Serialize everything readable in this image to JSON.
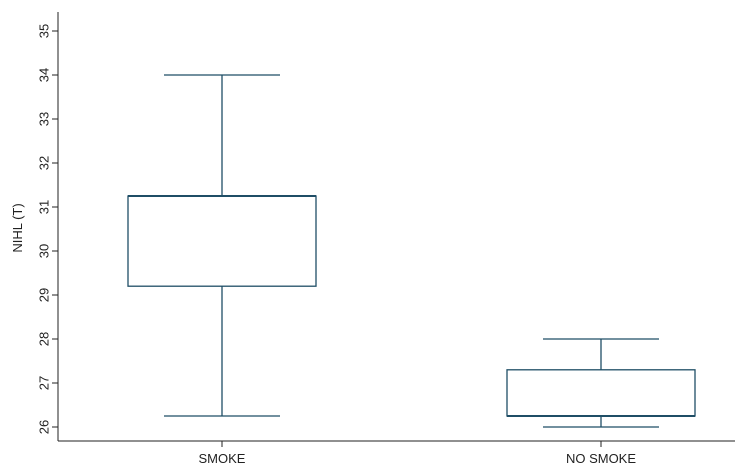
{
  "chart_data": {
    "type": "box",
    "title": "",
    "xlabel": "",
    "ylabel": "NIHL (T)",
    "ylim": [
      25.9,
      35.4
    ],
    "yticks": [
      26,
      27,
      28,
      29,
      30,
      31,
      32,
      33,
      34,
      35
    ],
    "ytick_labels": [
      "26",
      "27",
      "28",
      "29",
      "30",
      "31",
      "32",
      "33",
      "34",
      "35"
    ],
    "categories": [
      "SMOKE",
      "NO SMOKE"
    ],
    "boxes": [
      {
        "category": "SMOKE",
        "min": 26.25,
        "q1": 29.2,
        "median": 31.25,
        "q3": 31.25,
        "max": 34.0
      },
      {
        "category": "NO SMOKE",
        "min": 26.0,
        "q1": 26.25,
        "median": 26.25,
        "q3": 27.3,
        "max": 28.0
      }
    ],
    "grid": false,
    "legend": "none",
    "colors": {
      "box": "#1f4e66",
      "axis": "#222222"
    }
  }
}
